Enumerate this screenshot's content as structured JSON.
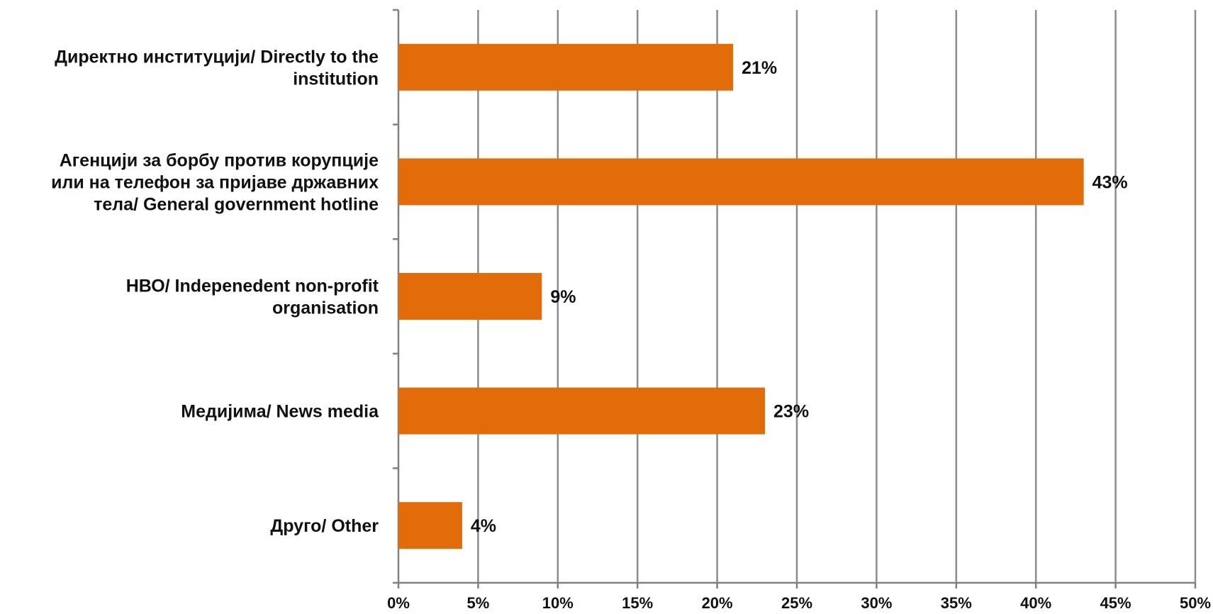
{
  "chart_data": {
    "type": "bar",
    "orientation": "horizontal",
    "categories": [
      [
        "Директно институцији/ Directly to the",
        "institution"
      ],
      [
        "Агенцији за борбу против корупције",
        "или на телефон за пријаве државних",
        "тела/ General government hotline"
      ],
      [
        "НВО/ Indepenedent non-profit",
        "organisation"
      ],
      [
        "Медијима/ News media"
      ],
      [
        "Друго/ Other"
      ]
    ],
    "values": [
      21,
      43,
      9,
      23,
      4
    ],
    "value_labels": [
      "21%",
      "43%",
      "9%",
      "23%",
      "4%"
    ],
    "x_ticks": [
      0,
      5,
      10,
      15,
      20,
      25,
      30,
      35,
      40,
      45,
      50
    ],
    "x_tick_labels": [
      "0%",
      "5%",
      "10%",
      "15%",
      "20%",
      "25%",
      "30%",
      "35%",
      "40%",
      "45%",
      "50%"
    ],
    "xlim": [
      0,
      50
    ],
    "grid": "vertical",
    "title": "",
    "xlabel": "",
    "ylabel": "",
    "colors": {
      "bar": "#E36C0A",
      "grid": "#8C8C8C",
      "axis": "#808080",
      "text": "#111111"
    }
  }
}
